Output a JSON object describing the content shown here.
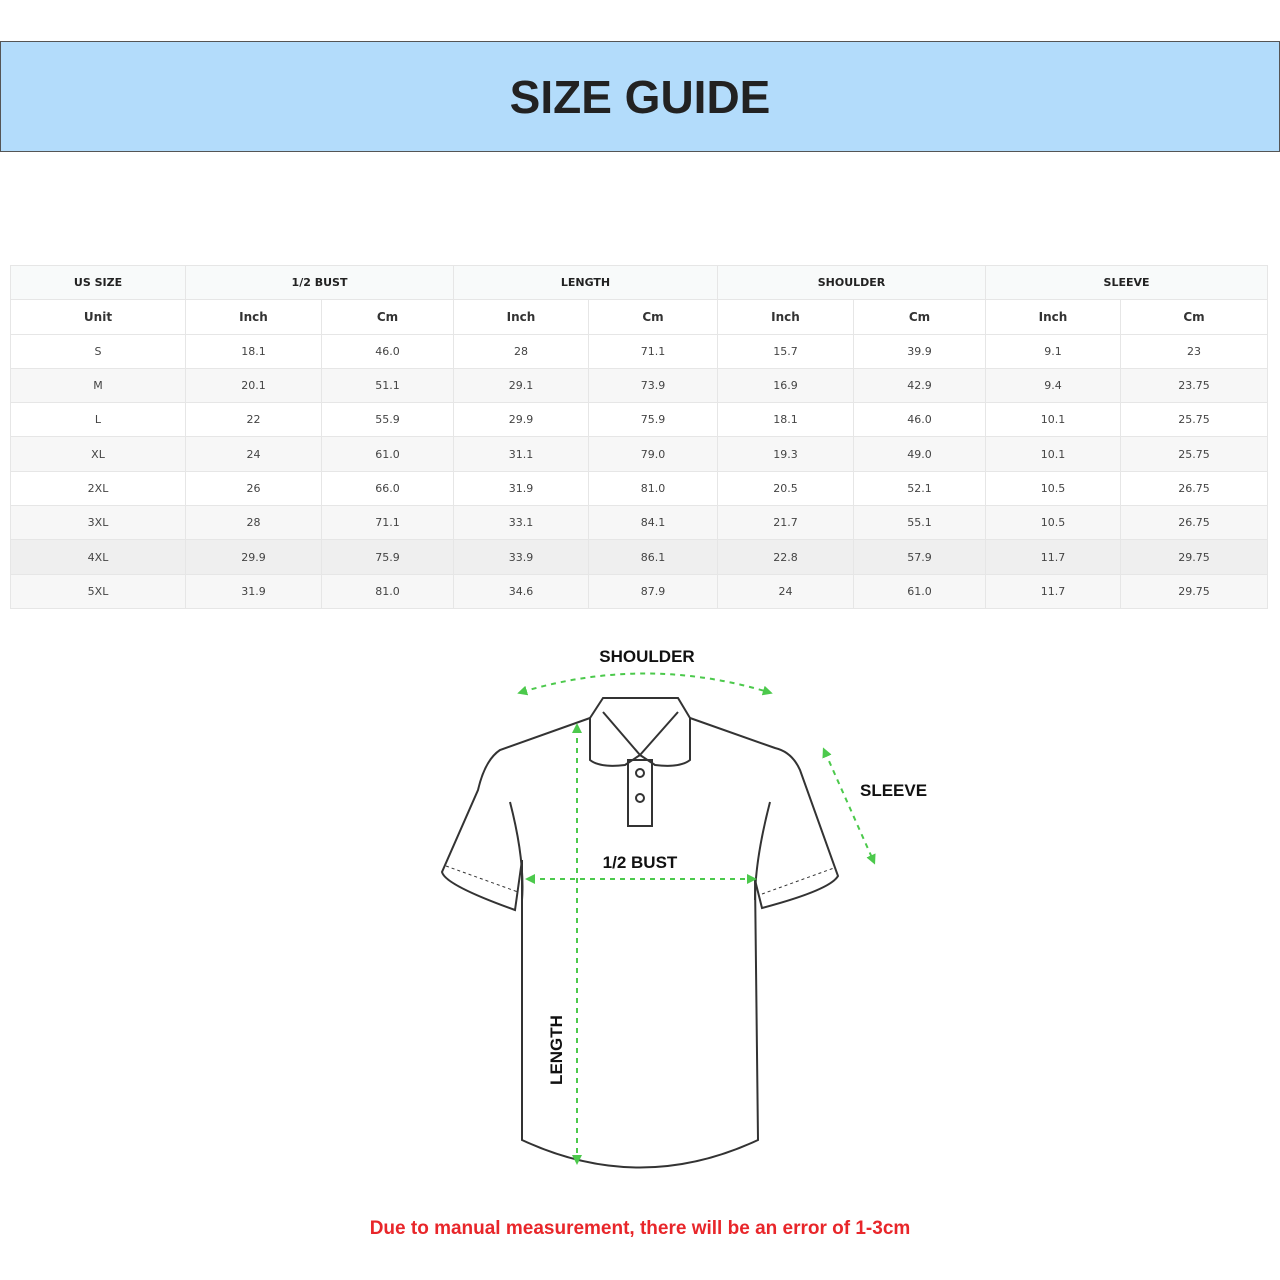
{
  "title": "SIZE GUIDE",
  "table": {
    "header": {
      "size": "US SIZE",
      "groups": [
        "1/2 BUST",
        "LENGTH",
        "SHOULDER",
        "SLEEVE"
      ]
    },
    "units": [
      "Unit",
      "Inch",
      "Cm",
      "Inch",
      "Cm",
      "Inch",
      "Cm",
      "Inch",
      "Cm"
    ],
    "rows": [
      [
        "S",
        "18.1",
        "46.0",
        "28",
        "71.1",
        "15.7",
        "39.9",
        "9.1",
        "23"
      ],
      [
        "M",
        "20.1",
        "51.1",
        "29.1",
        "73.9",
        "16.9",
        "42.9",
        "9.4",
        "23.75"
      ],
      [
        "L",
        "22",
        "55.9",
        "29.9",
        "75.9",
        "18.1",
        "46.0",
        "10.1",
        "25.75"
      ],
      [
        "XL",
        "24",
        "61.0",
        "31.1",
        "79.0",
        "19.3",
        "49.0",
        "10.1",
        "25.75"
      ],
      [
        "2XL",
        "26",
        "66.0",
        "31.9",
        "81.0",
        "20.5",
        "52.1",
        "10.5",
        "26.75"
      ],
      [
        "3XL",
        "28",
        "71.1",
        "33.1",
        "84.1",
        "21.7",
        "55.1",
        "10.5",
        "26.75"
      ],
      [
        "4XL",
        "29.9",
        "75.9",
        "33.9",
        "86.1",
        "22.8",
        "57.9",
        "11.7",
        "29.75"
      ],
      [
        "5XL",
        "31.9",
        "81.0",
        "34.6",
        "87.9",
        "24",
        "61.0",
        "11.7",
        "29.75"
      ]
    ]
  },
  "diagram": {
    "shoulder": "SHOULDER",
    "sleeve": "SLEEVE",
    "bust": "1/2 BUST",
    "length": "LENGTH",
    "arrow_color": "#4cc94c"
  },
  "note": "Due to manual measurement, there will be an error of 1-3cm",
  "colors": {
    "banner": "#b3dcfb",
    "note": "#e8262a"
  }
}
